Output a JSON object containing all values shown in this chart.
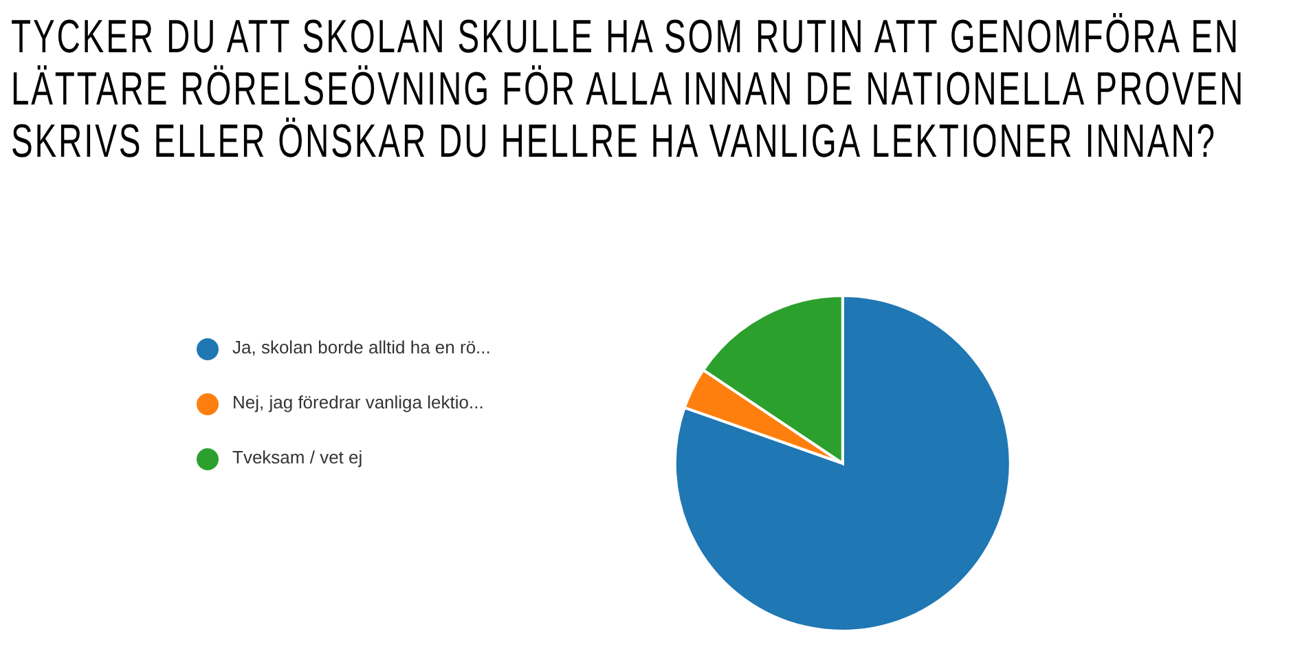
{
  "chart_data": {
    "type": "pie",
    "title": "TYCKER DU ATT SKOLAN SKULLE HA SOM RUTIN ATT GENOMFÖRA EN LÄTTARE RÖRELSEÖVNING FÖR ALLA INNAN DE NATIONELLA PROVEN SKRIVS ELLER ÖNSKAR DU HELLRE HA VANLIGA LEKTIONER INNAN?",
    "categories": [
      "Ja, skolan borde alltid ha en rö...",
      "Nej, jag föredrar vanliga lektio...",
      "Tveksam / vet ej"
    ],
    "values": [
      80.4,
      4,
      15.6
    ],
    "colors": [
      "#1f77b4",
      "#ff7f0e",
      "#2ca02c"
    ],
    "legend": "left"
  }
}
